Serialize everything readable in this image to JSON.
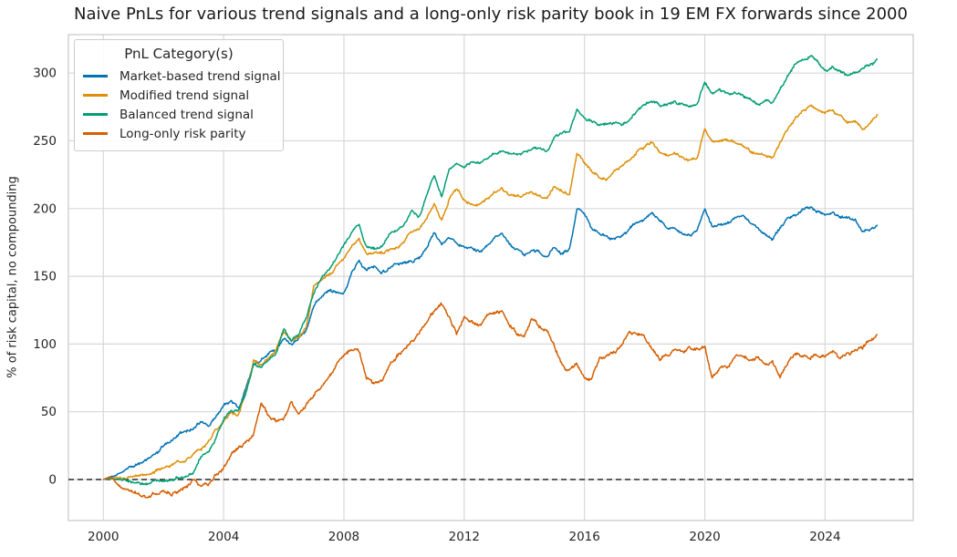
{
  "page": {
    "background": "#ffffff"
  },
  "chart_data": {
    "type": "line",
    "title": "Naive PnLs for various trend signals and a long-only risk parity book in 19 EM FX forwards since 2000",
    "xlabel": "",
    "ylabel": "% of risk capital, no compounding",
    "legend_title": "PnL Category(s)",
    "legend_position": "upper left",
    "grid": true,
    "grid_color": "#d8d8d8",
    "spine_color": "#cccccc",
    "text_color": "#262626",
    "zero_line": {
      "value": 0,
      "style": "dashed",
      "color": "#000000"
    },
    "xlim": [
      1998.84,
      2026.93
    ],
    "ylim": [
      -30.3,
      328.4
    ],
    "xticks": [
      2000,
      2004,
      2008,
      2012,
      2016,
      2020,
      2024
    ],
    "yticks": [
      0,
      50,
      100,
      150,
      200,
      250,
      300
    ],
    "x_unit": "year",
    "x_start": 2000.0,
    "x_step": 0.25,
    "series": [
      {
        "name": "Market-based trend signal",
        "color": "#0173b2",
        "noise": 1.1,
        "values": [
          0,
          2,
          4,
          7,
          11,
          13,
          15,
          19,
          25,
          29,
          33,
          36,
          38,
          43,
          40,
          47,
          55,
          58,
          52,
          68,
          85,
          88,
          92,
          95,
          105,
          100,
          104,
          110,
          128,
          135,
          140,
          138,
          137,
          152,
          162,
          155,
          157,
          152,
          156,
          158,
          158,
          160,
          163,
          170,
          183,
          173,
          178,
          174,
          172,
          170,
          168,
          172,
          177,
          180,
          174,
          170,
          167,
          170,
          168,
          165,
          172,
          166,
          170,
          199,
          196,
          185,
          181,
          178,
          178,
          181,
          184,
          190,
          192,
          196,
          190,
          186,
          185,
          182,
          180,
          182,
          199,
          186,
          188,
          190,
          193,
          196,
          190,
          186,
          180,
          177,
          185,
          193,
          196,
          199,
          201,
          198,
          195,
          197,
          194,
          194,
          192,
          183,
          185,
          189
        ]
      },
      {
        "name": "Modified trend signal",
        "color": "#de8f05",
        "noise": 1.1,
        "values": [
          0,
          1,
          1,
          2,
          3,
          4,
          4,
          6,
          8,
          10,
          13,
          16,
          19,
          22,
          28,
          38,
          42,
          50,
          48,
          65,
          88,
          84,
          90,
          95,
          108,
          101,
          103,
          112,
          143,
          148,
          152,
          158,
          165,
          172,
          177,
          166,
          167,
          168,
          170,
          172,
          175,
          183,
          186,
          193,
          205,
          192,
          208,
          214,
          206,
          204,
          203,
          207,
          212,
          215,
          210,
          208,
          209,
          212,
          210,
          207,
          216,
          213,
          211,
          240,
          234,
          228,
          223,
          221,
          228,
          232,
          236,
          242,
          245,
          248,
          242,
          238,
          240,
          237,
          235,
          237,
          258,
          249,
          250,
          251,
          249,
          247,
          243,
          241,
          239,
          237,
          248,
          258,
          266,
          272,
          276,
          273,
          271,
          272,
          268,
          264,
          266,
          259,
          263,
          269
        ]
      },
      {
        "name": "Balanced trend signal",
        "color": "#029e73",
        "noise": 1.1,
        "values": [
          0,
          1,
          0,
          -1,
          -2,
          -3,
          -2,
          -1,
          0,
          1,
          2,
          3,
          5,
          17,
          19,
          30,
          45,
          50,
          51,
          65,
          86,
          83,
          89,
          93,
          112,
          103,
          106,
          120,
          138,
          148,
          155,
          163,
          173,
          182,
          189,
          172,
          171,
          172,
          181,
          185,
          188,
          198,
          194,
          210,
          225,
          208,
          229,
          233,
          230,
          232,
          234,
          237,
          240,
          243,
          241,
          240,
          242,
          245,
          244,
          243,
          252,
          255,
          258,
          274,
          266,
          263,
          262,
          263,
          265,
          264,
          266,
          272,
          278,
          280,
          276,
          277,
          279,
          277,
          276,
          277,
          295,
          285,
          287,
          284,
          285,
          283,
          280,
          278,
          280,
          278,
          288,
          298,
          306,
          310,
          312,
          309,
          304,
          306,
          303,
          298,
          300,
          303,
          306,
          310
        ]
      },
      {
        "name": "Long-only risk parity",
        "color": "#d55e00",
        "noise": 1.4,
        "values": [
          0,
          2,
          -4,
          -7,
          -9,
          -12,
          -13,
          -11,
          -8,
          -11,
          -9,
          -5,
          1,
          -4,
          -2,
          3,
          8,
          18,
          23,
          27,
          32,
          55,
          46,
          44,
          44,
          59,
          48,
          55,
          63,
          70,
          77,
          85,
          93,
          98,
          96,
          75,
          70,
          72,
          84,
          90,
          96,
          102,
          108,
          117,
          125,
          129,
          119,
          109,
          122,
          118,
          115,
          120,
          123,
          125,
          114,
          106,
          105,
          117,
          112,
          108,
          97,
          85,
          80,
          87,
          73,
          75,
          89,
          91,
          93,
          99,
          109,
          107,
          105,
          97,
          88,
          92,
          95,
          93,
          97,
          96,
          98,
          73,
          80,
          83,
          91,
          93,
          89,
          91,
          86,
          89,
          75,
          85,
          93,
          91,
          89,
          92,
          91,
          94,
          90,
          93,
          95,
          97,
          102,
          107
        ]
      }
    ]
  }
}
